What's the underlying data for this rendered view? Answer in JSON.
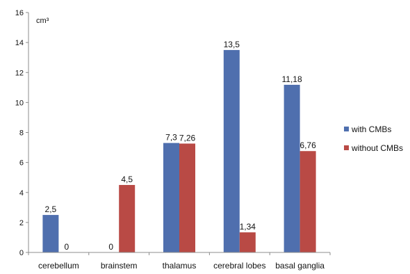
{
  "chart_data": {
    "type": "bar",
    "unit_label": "cm³",
    "categories": [
      "cerebellum",
      "brainstem",
      "thalamus",
      "cerebral lobes",
      "basal ganglia"
    ],
    "series": [
      {
        "name": "with CMBs",
        "color": "#4f6fae",
        "values": [
          2.5,
          0,
          7.3,
          13.5,
          11.18
        ],
        "labels": [
          "2,5",
          "0",
          "7,3",
          "13,5",
          "11,18"
        ]
      },
      {
        "name": "without CMBs",
        "color": "#b94a45",
        "values": [
          0,
          4.5,
          7.26,
          1.34,
          6.76
        ],
        "labels": [
          "0",
          "4,5",
          "7,26",
          "1,34",
          "6,76"
        ]
      }
    ],
    "ylim": [
      0,
      16
    ],
    "yticks": [
      0,
      2,
      4,
      6,
      8,
      10,
      12,
      14,
      16
    ],
    "grid": false,
    "legend_position": "right"
  }
}
